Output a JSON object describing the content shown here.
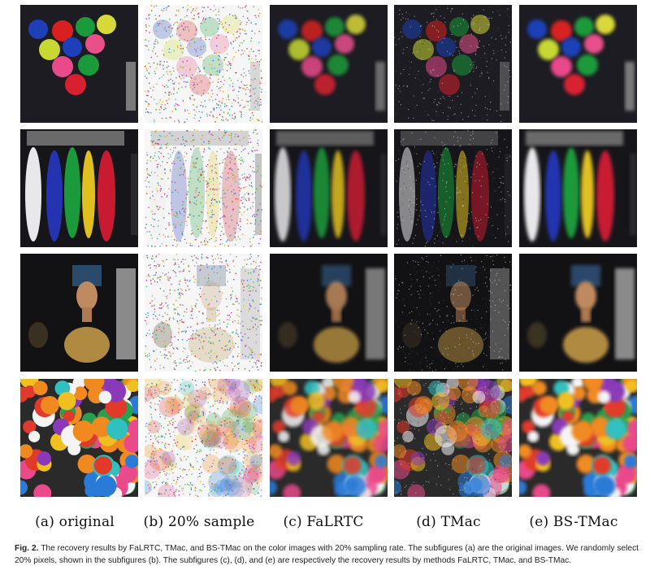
{
  "figure": {
    "columns": [
      {
        "id": "original",
        "label": "(a) original"
      },
      {
        "id": "sample",
        "label": "(b) 20% sample"
      },
      {
        "id": "falrtc",
        "label": "(c) FaLRTC"
      },
      {
        "id": "tmac",
        "label": "(d) TMac"
      },
      {
        "id": "bstmac",
        "label": "(e) BS-TMac"
      }
    ],
    "rows": [
      "balloons",
      "feathers",
      "bust",
      "pompoms"
    ]
  },
  "caption": {
    "label": "Fig. 2.",
    "text": "The recovery results by FaLRTC, TMac, and BS-TMac on the color images with 20% sampling rate. The subfigures (a) are the original images. We randomly select 20% pixels, shown in the subfigures (b). The subfigures (c), (d), and (e) are respectively the recovery results by methods FaLRTC, TMac, and BS-TMac."
  }
}
